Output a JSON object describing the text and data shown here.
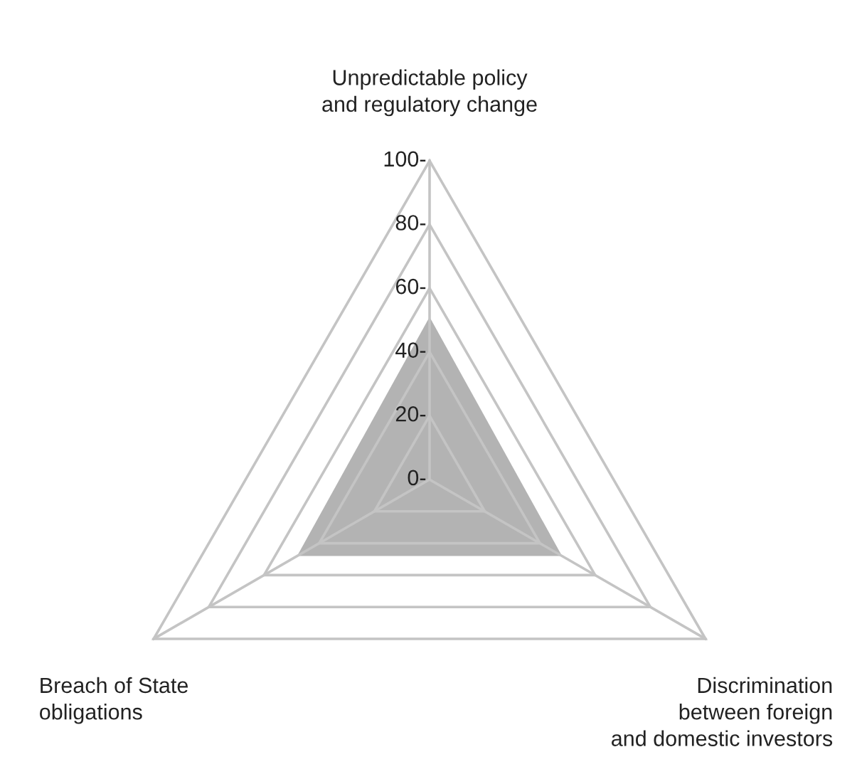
{
  "chart_data": {
    "type": "radar",
    "categories": [
      "Unpredictable policy\nand regulatory change",
      "Discrimination\nbetween foreign\nand domestic investors",
      "Breach of State\nobligations"
    ],
    "series": [
      {
        "color": "#b3b3b3",
        "values": [
          51,
          48,
          48
        ]
      }
    ],
    "ylim": [
      0,
      100
    ],
    "yticks": [
      {
        "value": 0,
        "label": "0-"
      },
      {
        "value": 20,
        "label": "20-"
      },
      {
        "value": 40,
        "label": "40-"
      },
      {
        "value": 60,
        "label": "60-"
      },
      {
        "value": 80,
        "label": "80-"
      },
      {
        "value": 100,
        "label": "100-"
      }
    ],
    "grid": true
  }
}
